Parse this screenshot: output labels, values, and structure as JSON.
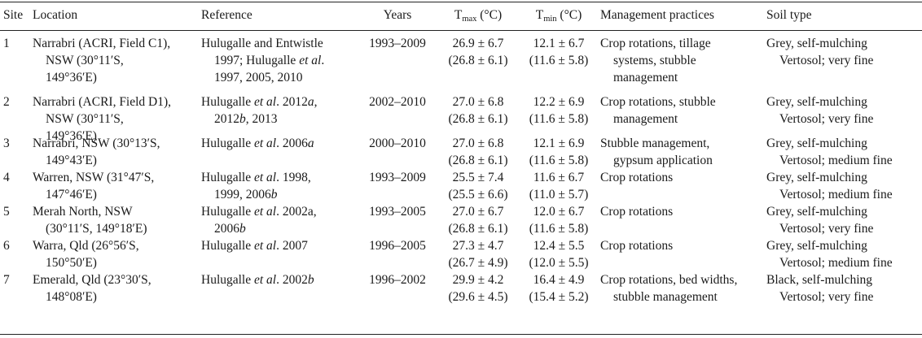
{
  "headers": {
    "site": "Site",
    "location": "Location",
    "reference": "Reference",
    "years": "Years",
    "tmax_base": "T",
    "tmax_sub": "max",
    "tmax_unit": " (°C)",
    "tmin_base": "T",
    "tmin_sub": "min",
    "tmin_unit": " (°C)",
    "management": "Management practices",
    "soil": "Soil type"
  },
  "rows": [
    {
      "site": "1",
      "location": [
        "Narrabri (ACRI, Field C1),",
        "NSW (30°11′S,",
        "149°36′E)"
      ],
      "reference": [
        [
          "Hulugalle and Entwistle"
        ],
        [
          "1997; Hulugalle ",
          "et al",
          "."
        ],
        [
          "1997, 2005, 2010"
        ]
      ],
      "years": "1993–2009",
      "tmax": [
        "26.9 ± 6.7",
        "(26.8 ± 6.1)"
      ],
      "tmin": [
        "12.1 ± 6.7",
        "(11.6 ± 5.8)"
      ],
      "management": [
        "Crop rotations, tillage",
        "systems, stubble",
        "management"
      ],
      "soil": [
        "Grey, self-mulching",
        "Vertosol; very fine"
      ]
    },
    {
      "site": "2",
      "location": [
        "Narrabri (ACRI, Field D1),",
        "NSW (30°11′S,",
        "149°36′E)"
      ],
      "reference": [
        [
          "Hulugalle ",
          "et al",
          ". 2012",
          "a",
          ","
        ],
        [
          "2012",
          "b",
          ", 2013"
        ]
      ],
      "years": "2002–2010",
      "tmax": [
        "27.0 ± 6.8",
        "(26.8 ± 6.1)"
      ],
      "tmin": [
        "12.2 ± 6.9",
        "(11.6 ± 5.8)"
      ],
      "management": [
        "Crop rotations, stubble",
        "management"
      ],
      "soil": [
        "Grey, self-mulching",
        "Vertosol; very fine"
      ]
    },
    {
      "site": "3",
      "location": [
        "Narrabri, NSW (30°13′S,",
        "149°43′E)"
      ],
      "reference": [
        [
          "Hulugalle ",
          "et al",
          ". 2006",
          "a"
        ]
      ],
      "years": "2000–2010",
      "tmax": [
        "27.0 ± 6.8",
        "(26.8 ± 6.1)"
      ],
      "tmin": [
        "12.1 ± 6.9",
        "(11.6 ± 5.8)"
      ],
      "management": [
        "Stubble management,",
        "gypsum application"
      ],
      "soil": [
        "Grey, self-mulching",
        "Vertosol; medium fine"
      ]
    },
    {
      "site": "4",
      "location": [
        "Warren, NSW (31°47′S,",
        "147°46′E)"
      ],
      "reference": [
        [
          "Hulugalle ",
          "et al",
          ". 1998,"
        ],
        [
          "1999, 2006",
          "b"
        ]
      ],
      "years": "1993–2009",
      "tmax": [
        "25.5 ± 7.4",
        "(25.5 ± 6.6)"
      ],
      "tmin": [
        "11.6 ± 6.7",
        "(11.0 ± 5.7)"
      ],
      "management": [
        "Crop rotations"
      ],
      "soil": [
        "Grey, self-mulching",
        "Vertosol; medium fine"
      ]
    },
    {
      "site": "5",
      "location": [
        "Merah North, NSW",
        "(30°11′S, 149°18′E)"
      ],
      "reference": [
        [
          "Hulugalle ",
          "et al",
          ". 2002a,"
        ],
        [
          "2006",
          "b"
        ]
      ],
      "years": "1993–2005",
      "tmax": [
        "27.0 ± 6.7",
        "(26.8 ± 6.1)"
      ],
      "tmin": [
        "12.0 ± 6.7",
        "(11.6 ± 5.8)"
      ],
      "management": [
        "Crop rotations"
      ],
      "soil": [
        "Grey, self-mulching",
        "Vertosol; very fine"
      ]
    },
    {
      "site": "6",
      "location": [
        "Warra, Qld (26°56′S,",
        "150°50′E)"
      ],
      "reference": [
        [
          "Hulugalle ",
          "et al",
          ". 2007"
        ]
      ],
      "years": "1996–2005",
      "tmax": [
        "27.3 ± 4.7",
        "(26.7 ± 4.9)"
      ],
      "tmin": [
        "12.4 ± 5.5",
        "(12.0 ± 5.5)"
      ],
      "management": [
        "Crop rotations"
      ],
      "soil": [
        "Grey, self-mulching",
        "Vertosol; medium fine"
      ]
    },
    {
      "site": "7",
      "location": [
        "Emerald, Qld (23°30′S,",
        "148°08′E)"
      ],
      "reference": [
        [
          "Hulugalle ",
          "et al",
          ". 2002",
          "b"
        ]
      ],
      "years": "1996–2002",
      "tmax": [
        "29.9 ± 4.2",
        "(29.6 ± 4.5)"
      ],
      "tmin": [
        "16.4 ± 4.9",
        "(15.4 ± 5.2)"
      ],
      "management": [
        "Crop rotations, bed widths,",
        "stubble management"
      ],
      "soil": [
        "Black, self-mulching",
        "Vertosol; very fine"
      ]
    }
  ]
}
